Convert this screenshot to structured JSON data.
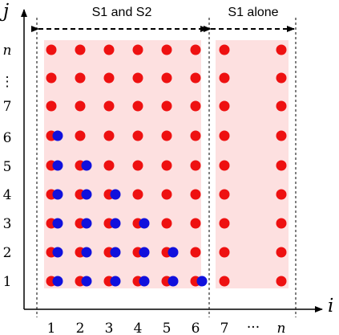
{
  "axes": {
    "x_name": "i",
    "y_name": "j",
    "x_ticks": [
      "1",
      "2",
      "3",
      "4",
      "5",
      "6",
      "7",
      "n"
    ],
    "x_ellipsis": "···",
    "y_ticks": [
      "1",
      "2",
      "3",
      "4",
      "5",
      "6",
      "7",
      "n"
    ],
    "y_ellipsis": "⋮"
  },
  "regions": [
    {
      "name": "S1 and S2",
      "label": "S1 and S2",
      "color": "#fde0e0"
    },
    {
      "name": "S1 alone",
      "label": "S1 alone",
      "color": "#fde0e0"
    }
  ],
  "colors": {
    "red_dot": "#ee1111",
    "blue_dot": "#1010dd",
    "axis": "#000000"
  },
  "grid": {
    "red_columns": [
      "1",
      "2",
      "3",
      "4",
      "5",
      "6",
      "7",
      "n"
    ],
    "red_rows": [
      "1",
      "2",
      "3",
      "4",
      "5",
      "6",
      "7",
      "n"
    ],
    "blue_dots_rule": "blue dot at (i, j) for each j from 1 to 7 - i, for i from 1 to 6"
  }
}
